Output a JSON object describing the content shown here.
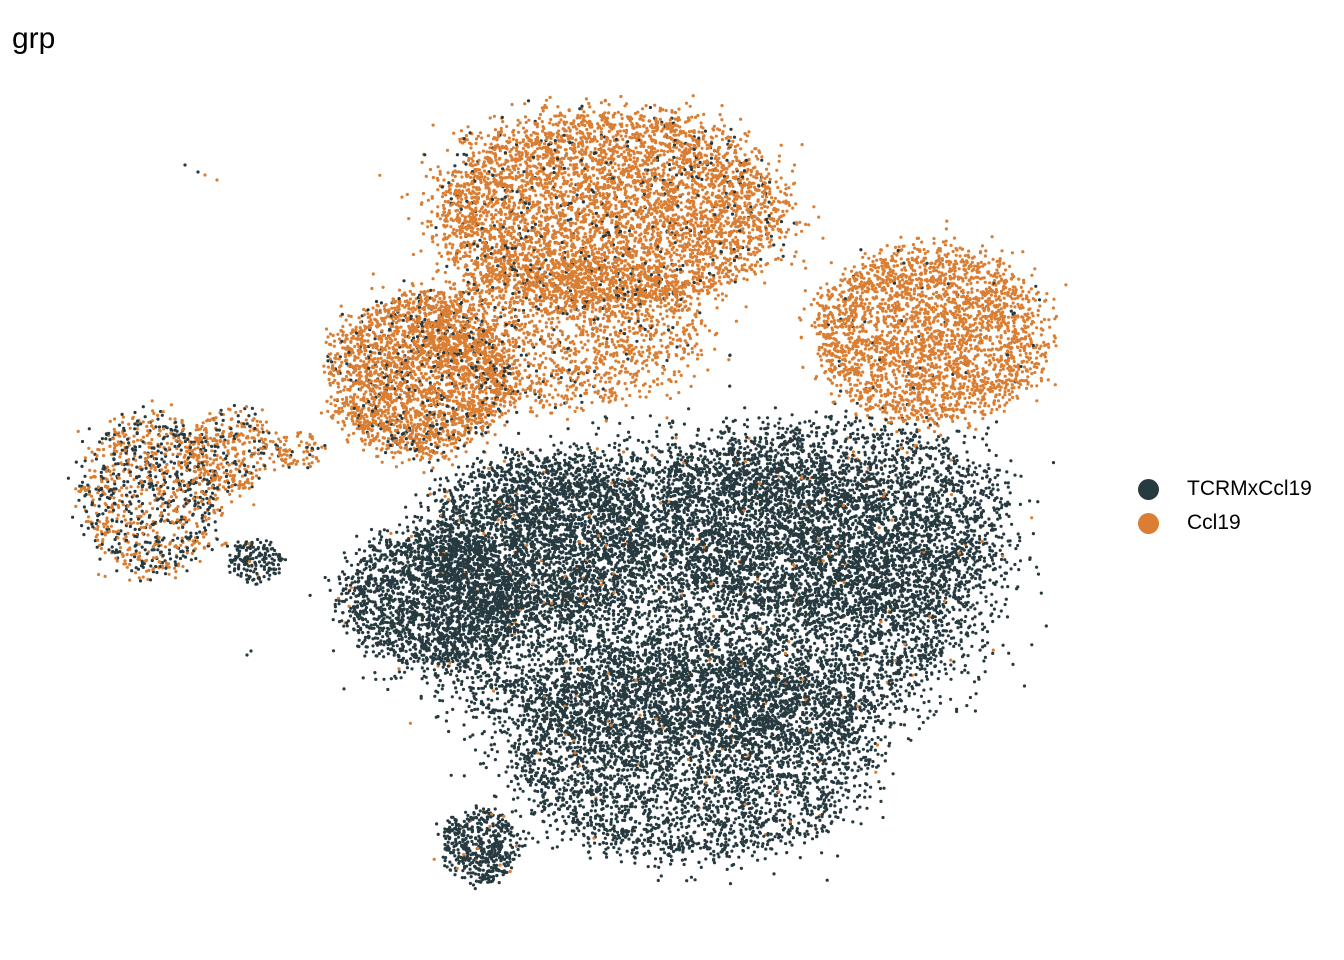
{
  "chart_data": {
    "type": "scatter",
    "title": "grp",
    "xlabel": "",
    "ylabel": "",
    "grid": false,
    "axes_visible": false,
    "legend_placement": "right",
    "series": [
      {
        "name": "TCRMxCcl19",
        "color": "#263A40"
      },
      {
        "name": "Ccl19",
        "color": "#D97E33"
      }
    ]
  }
}
